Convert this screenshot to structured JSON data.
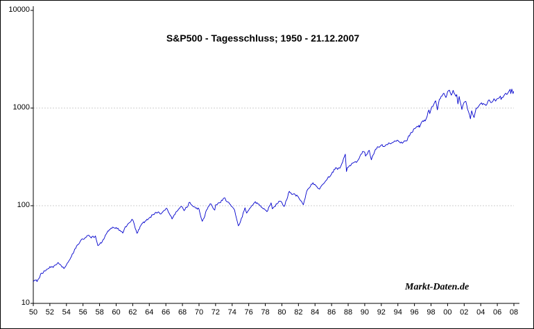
{
  "title": "S&P500 - Tagesschluss; 1950 - 21.12.2007",
  "watermark": "Markt-Daten.de",
  "chart_data": {
    "type": "line",
    "title": "S&P500 - Tagesschluss; 1950 - 21.12.2007",
    "xlabel": "",
    "ylabel": "",
    "legend": "none",
    "line_color": "#0000cc",
    "x_axis": {
      "range": [
        1950,
        2008
      ],
      "tick_labels": [
        "50",
        "52",
        "54",
        "56",
        "58",
        "60",
        "62",
        "64",
        "66",
        "68",
        "70",
        "72",
        "74",
        "76",
        "78",
        "80",
        "82",
        "84",
        "86",
        "88",
        "90",
        "92",
        "94",
        "96",
        "98",
        "00",
        "02",
        "04",
        "06",
        "08"
      ]
    },
    "y_axis": {
      "scale": "log",
      "range": [
        10,
        10000
      ],
      "tick_labels": [
        "10",
        "100",
        "1000",
        "10000"
      ],
      "grid_lines": [
        100,
        1000
      ]
    },
    "series": [
      {
        "name": "S&P500 Tagesschluss",
        "points": [
          [
            1950.0,
            16.7
          ],
          [
            1950.25,
            17.3
          ],
          [
            1950.45,
            16.7
          ],
          [
            1951.0,
            20.4
          ],
          [
            1951.5,
            21.5
          ],
          [
            1952.0,
            23.8
          ],
          [
            1952.4,
            23.3
          ],
          [
            1953.0,
            26.2
          ],
          [
            1953.7,
            22.7
          ],
          [
            1954.0,
            24.8
          ],
          [
            1954.5,
            29.2
          ],
          [
            1955.0,
            36.0
          ],
          [
            1955.8,
            45.0
          ],
          [
            1956.0,
            45.5
          ],
          [
            1956.6,
            49.6
          ],
          [
            1957.0,
            46.7
          ],
          [
            1957.5,
            49.1
          ],
          [
            1957.8,
            39.0
          ],
          [
            1958.0,
            40.3
          ],
          [
            1958.5,
            45.3
          ],
          [
            1959.0,
            55.2
          ],
          [
            1959.6,
            60.5
          ],
          [
            1960.0,
            59.9
          ],
          [
            1960.8,
            52.5
          ],
          [
            1961.0,
            58.1
          ],
          [
            1961.9,
            72.6
          ],
          [
            1962.0,
            71.6
          ],
          [
            1962.5,
            52.3
          ],
          [
            1963.0,
            63.1
          ],
          [
            1963.5,
            69.6
          ],
          [
            1964.0,
            75.0
          ],
          [
            1964.5,
            81.7
          ],
          [
            1965.0,
            84.8
          ],
          [
            1965.5,
            84.1
          ],
          [
            1966.1,
            94.1
          ],
          [
            1966.75,
            73.2
          ],
          [
            1967.0,
            80.3
          ],
          [
            1967.75,
            97.0
          ],
          [
            1968.0,
            96.5
          ],
          [
            1968.2,
            89.1
          ],
          [
            1968.9,
            108.4
          ],
          [
            1969.0,
            103.9
          ],
          [
            1969.5,
            97.0
          ],
          [
            1970.0,
            92.1
          ],
          [
            1970.4,
            69.3
          ],
          [
            1971.0,
            92.2
          ],
          [
            1971.35,
            104.8
          ],
          [
            1971.9,
            90.2
          ],
          [
            1972.0,
            102.1
          ],
          [
            1972.5,
            107.1
          ],
          [
            1973.03,
            120.2
          ],
          [
            1973.7,
            104.0
          ],
          [
            1974.0,
            97.6
          ],
          [
            1974.3,
            90.0
          ],
          [
            1974.75,
            62.3
          ],
          [
            1975.0,
            68.6
          ],
          [
            1975.55,
            95.2
          ],
          [
            1975.75,
            83.9
          ],
          [
            1976.0,
            90.2
          ],
          [
            1976.7,
            107.8
          ],
          [
            1977.0,
            107.5
          ],
          [
            1978.2,
            86.9
          ],
          [
            1978.7,
            106.9
          ],
          [
            1978.85,
            93.0
          ],
          [
            1979.0,
            96.1
          ],
          [
            1979.75,
            111.3
          ],
          [
            1980.0,
            107.9
          ],
          [
            1980.27,
            98.2
          ],
          [
            1980.9,
            140.5
          ],
          [
            1981.0,
            135.8
          ],
          [
            1981.6,
            130.0
          ],
          [
            1982.0,
            122.6
          ],
          [
            1982.6,
            102.4
          ],
          [
            1983.0,
            140.6
          ],
          [
            1983.75,
            172.0
          ],
          [
            1984.0,
            164.9
          ],
          [
            1984.55,
            147.8
          ],
          [
            1985.0,
            167.2
          ],
          [
            1985.5,
            189.5
          ],
          [
            1986.0,
            211.3
          ],
          [
            1986.5,
            245.7
          ],
          [
            1986.72,
            235.0
          ],
          [
            1987.0,
            242.2
          ],
          [
            1987.65,
            336.8
          ],
          [
            1987.8,
            223.9
          ],
          [
            1987.9,
            245.0
          ],
          [
            1988.0,
            247.1
          ],
          [
            1988.5,
            273.5
          ],
          [
            1989.0,
            277.7
          ],
          [
            1989.75,
            359.8
          ],
          [
            1990.0,
            353.4
          ],
          [
            1990.1,
            322.0
          ],
          [
            1990.55,
            368.9
          ],
          [
            1990.8,
            295.5
          ],
          [
            1991.0,
            330.2
          ],
          [
            1991.3,
            380.0
          ],
          [
            1992.0,
            417.1
          ],
          [
            1992.3,
            403.7
          ],
          [
            1993.0,
            435.7
          ],
          [
            1993.5,
            450.2
          ],
          [
            1994.0,
            466.5
          ],
          [
            1994.3,
            438.9
          ],
          [
            1995.0,
            459.3
          ],
          [
            1995.5,
            544.8
          ],
          [
            1996.0,
            615.9
          ],
          [
            1996.55,
            668.0
          ],
          [
            1996.6,
            635.0
          ],
          [
            1997.0,
            740.7
          ],
          [
            1997.3,
            737.6
          ],
          [
            1997.75,
            955.0
          ],
          [
            1997.85,
            877.0
          ],
          [
            1998.0,
            970.4
          ],
          [
            1998.55,
            1186.8
          ],
          [
            1998.77,
            957.3
          ],
          [
            1999.0,
            1229.2
          ],
          [
            1999.55,
            1418.8
          ],
          [
            1999.8,
            1282.0
          ],
          [
            2000.0,
            1469.3
          ],
          [
            2000.22,
            1527.5
          ],
          [
            2000.45,
            1356.0
          ],
          [
            2000.67,
            1520.0
          ],
          [
            2001.0,
            1320.3
          ],
          [
            2001.1,
            1373.7
          ],
          [
            2001.25,
            1103.2
          ],
          [
            2001.4,
            1312.8
          ],
          [
            2001.72,
            965.8
          ],
          [
            2002.0,
            1148.1
          ],
          [
            2002.2,
            1172.5
          ],
          [
            2002.75,
            776.8
          ],
          [
            2002.9,
            936.3
          ],
          [
            2003.0,
            879.8
          ],
          [
            2003.2,
            800.7
          ],
          [
            2003.45,
            998.7
          ],
          [
            2004.0,
            1111.9
          ],
          [
            2004.6,
            1063.2
          ],
          [
            2005.0,
            1211.9
          ],
          [
            2005.3,
            1137.5
          ],
          [
            2005.6,
            1245.0
          ],
          [
            2005.8,
            1176.8
          ],
          [
            2006.0,
            1248.3
          ],
          [
            2006.37,
            1325.8
          ],
          [
            2006.45,
            1223.7
          ],
          [
            2007.0,
            1418.3
          ],
          [
            2007.15,
            1374.1
          ],
          [
            2007.55,
            1553.1
          ],
          [
            2007.62,
            1406.7
          ],
          [
            2007.75,
            1565.2
          ],
          [
            2007.9,
            1407.2
          ],
          [
            2007.97,
            1484.5
          ]
        ]
      }
    ]
  }
}
